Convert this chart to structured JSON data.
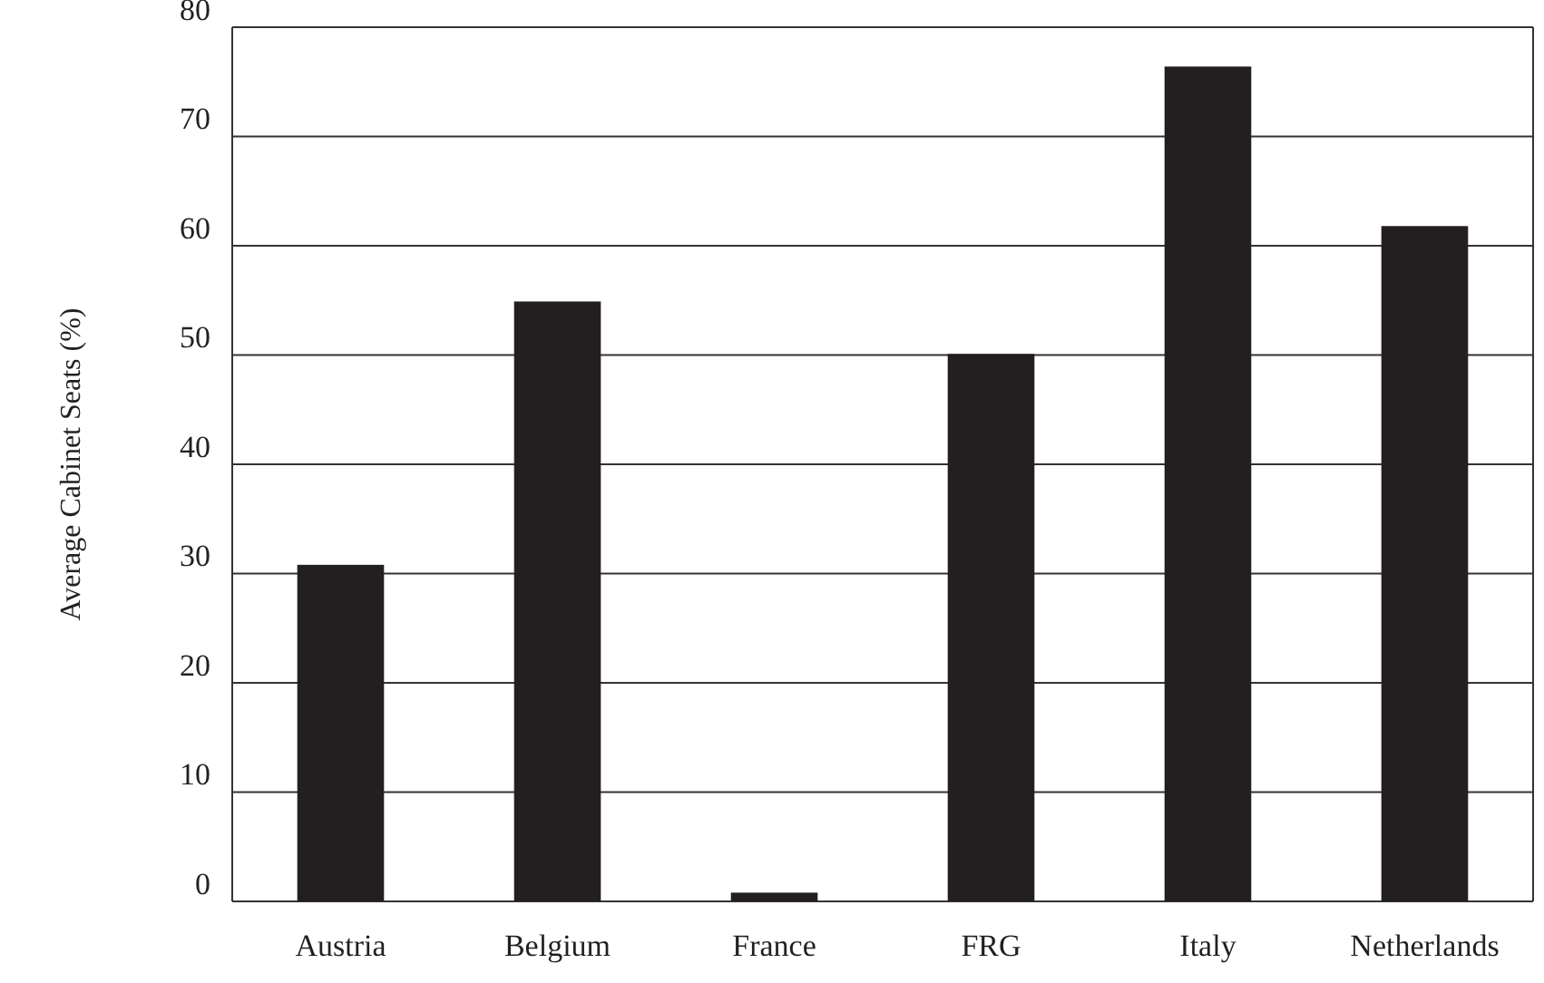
{
  "chart_data": {
    "type": "bar",
    "ylabel": "Average Cabinet Seats (%)",
    "categories": [
      "Austria",
      "Belgium",
      "France",
      "FRG",
      "Italy",
      "Netherlands"
    ],
    "values": [
      30.8,
      54.9,
      0.8,
      50.1,
      76.4,
      61.8
    ],
    "color": "#231f20",
    "ylim": [
      0,
      80
    ],
    "yticks": [
      0,
      10,
      20,
      30,
      40,
      50,
      60,
      70,
      80
    ],
    "grid": "y"
  }
}
